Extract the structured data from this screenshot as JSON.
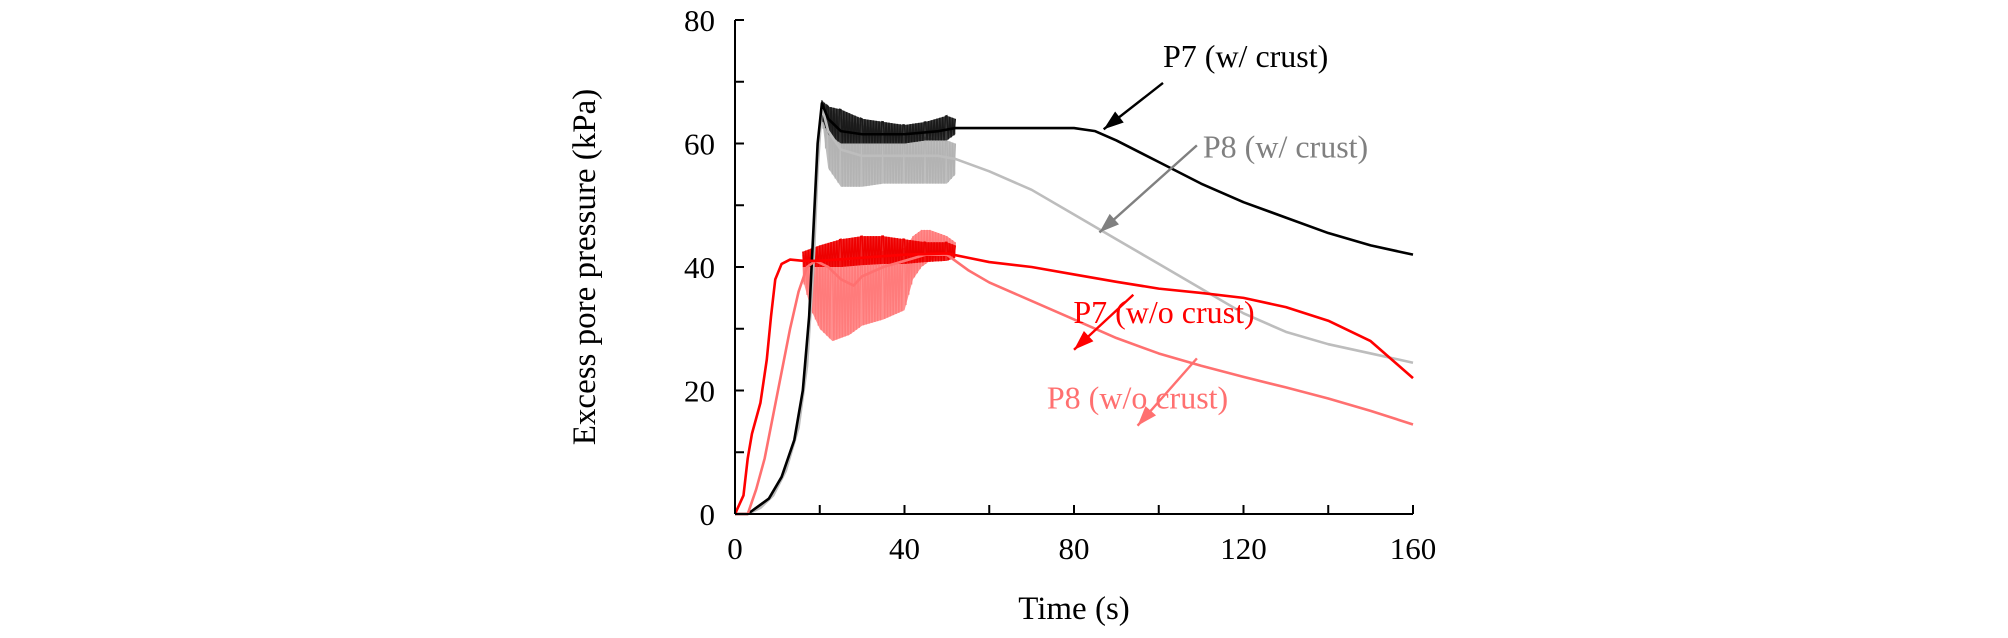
{
  "chart_data": {
    "type": "line",
    "xlabel": "Time (s)",
    "ylabel": "Excess pore pressure (kPa)",
    "xlim": [
      0,
      160
    ],
    "ylim": [
      0,
      80
    ],
    "xticks": [
      0,
      40,
      80,
      120,
      160
    ],
    "yticks": [
      0,
      20,
      40,
      60,
      80
    ],
    "grid": false,
    "legend": "none",
    "series": [
      {
        "name": "P8 (w/ crust)",
        "color": "#bdbdbd",
        "band_color": "#b3b3b3",
        "points": [
          [
            0,
            0
          ],
          [
            3,
            0
          ],
          [
            6,
            1
          ],
          [
            9,
            3
          ],
          [
            12,
            7
          ],
          [
            15,
            14
          ],
          [
            17,
            24
          ],
          [
            18.5,
            40
          ],
          [
            19.5,
            56
          ],
          [
            20.5,
            66
          ],
          [
            22,
            62
          ],
          [
            25,
            59
          ],
          [
            30,
            58
          ],
          [
            40,
            58
          ],
          [
            48,
            58
          ],
          [
            52,
            57.5
          ],
          [
            60,
            55.5
          ],
          [
            70,
            52.5
          ],
          [
            80,
            48.5
          ],
          [
            90,
            44.5
          ],
          [
            100,
            40.5
          ],
          [
            110,
            36.5
          ],
          [
            120,
            32.5
          ],
          [
            130,
            29.5
          ],
          [
            140,
            27.5
          ],
          [
            150,
            26
          ],
          [
            160,
            24.5
          ]
        ],
        "band": [
          [
            20.5,
            66,
            64
          ],
          [
            22,
            66,
            56
          ],
          [
            25,
            64,
            53
          ],
          [
            30,
            63,
            53
          ],
          [
            35,
            62,
            53.5
          ],
          [
            40,
            61,
            53.5
          ],
          [
            45,
            61,
            53.5
          ],
          [
            50,
            60.5,
            53.5
          ],
          [
            52,
            60,
            55
          ]
        ]
      },
      {
        "name": "P7 (w/ crust)",
        "color": "#000000",
        "band_color": "#1a1a1a",
        "points": [
          [
            0,
            0
          ],
          [
            3,
            0
          ],
          [
            5,
            1
          ],
          [
            8,
            2.5
          ],
          [
            11,
            6
          ],
          [
            14,
            12
          ],
          [
            16,
            20
          ],
          [
            17.5,
            32
          ],
          [
            18.5,
            46
          ],
          [
            19.5,
            60
          ],
          [
            20.5,
            66.5
          ],
          [
            22,
            64
          ],
          [
            25,
            62
          ],
          [
            30,
            61.5
          ],
          [
            40,
            61.5
          ],
          [
            48,
            62
          ],
          [
            52,
            62.5
          ],
          [
            60,
            62.5
          ],
          [
            70,
            62.5
          ],
          [
            80,
            62.5
          ],
          [
            85,
            62
          ],
          [
            90,
            60.5
          ],
          [
            100,
            57
          ],
          [
            110,
            53.5
          ],
          [
            120,
            50.5
          ],
          [
            130,
            48
          ],
          [
            140,
            45.5
          ],
          [
            150,
            43.5
          ],
          [
            160,
            42
          ]
        ],
        "band": [
          [
            20.5,
            67,
            64
          ],
          [
            22,
            66,
            61.5
          ],
          [
            25,
            65.5,
            60
          ],
          [
            30,
            64,
            60
          ],
          [
            35,
            63.5,
            60
          ],
          [
            40,
            63,
            60
          ],
          [
            45,
            63.5,
            60.5
          ],
          [
            50,
            64.5,
            60.5
          ],
          [
            52,
            64,
            61.5
          ]
        ]
      },
      {
        "name": "P8 (w/o crust)",
        "color": "#ff7070",
        "band_color": "#ff7b7b",
        "points": [
          [
            0,
            0
          ],
          [
            3,
            0
          ],
          [
            5,
            4
          ],
          [
            7,
            9
          ],
          [
            9,
            16
          ],
          [
            11,
            23
          ],
          [
            13,
            30
          ],
          [
            15,
            36
          ],
          [
            17,
            40
          ],
          [
            19,
            41
          ],
          [
            22,
            40
          ],
          [
            25,
            38
          ],
          [
            28,
            37
          ],
          [
            30,
            38.5
          ],
          [
            35,
            40
          ],
          [
            40,
            41
          ],
          [
            45,
            42
          ],
          [
            50,
            42
          ],
          [
            55,
            39.5
          ],
          [
            60,
            37.5
          ],
          [
            70,
            34.5
          ],
          [
            80,
            31.5
          ],
          [
            90,
            28.5
          ],
          [
            100,
            26
          ],
          [
            110,
            24
          ],
          [
            120,
            22.2
          ],
          [
            130,
            20.5
          ],
          [
            140,
            18.7
          ],
          [
            150,
            16.7
          ],
          [
            160,
            14.5
          ]
        ],
        "band": [
          [
            16,
            42,
            38
          ],
          [
            18,
            41.5,
            33
          ],
          [
            20,
            42,
            30
          ],
          [
            23,
            41.5,
            28
          ],
          [
            27,
            41,
            29
          ],
          [
            30,
            41.5,
            30.5
          ],
          [
            35,
            42.5,
            31.5
          ],
          [
            40,
            43,
            33
          ],
          [
            42,
            45,
            38
          ],
          [
            44,
            46,
            40
          ],
          [
            46,
            46,
            41
          ],
          [
            48,
            45.5,
            42
          ],
          [
            50,
            45,
            42
          ],
          [
            52,
            44,
            42
          ]
        ]
      },
      {
        "name": "P7 (w/o crust)",
        "color": "#ff0000",
        "band_color": "#ee0000",
        "points": [
          [
            0,
            0
          ],
          [
            2,
            3
          ],
          [
            3,
            9
          ],
          [
            4,
            13
          ],
          [
            6,
            18
          ],
          [
            7.5,
            25
          ],
          [
            8.5,
            32
          ],
          [
            9.5,
            38
          ],
          [
            11,
            40.5
          ],
          [
            13,
            41.2
          ],
          [
            16,
            41
          ],
          [
            20,
            41
          ],
          [
            30,
            41.5
          ],
          [
            40,
            42
          ],
          [
            50,
            42.2
          ],
          [
            55,
            41.5
          ],
          [
            60,
            40.8
          ],
          [
            70,
            40
          ],
          [
            80,
            38.8
          ],
          [
            90,
            37.6
          ],
          [
            100,
            36.5
          ],
          [
            110,
            35.8
          ],
          [
            120,
            35
          ],
          [
            130,
            33.5
          ],
          [
            140,
            31.3
          ],
          [
            150,
            28
          ],
          [
            155,
            25
          ],
          [
            160,
            22
          ]
        ],
        "band": [
          [
            16,
            42.5,
            40
          ],
          [
            20,
            43.5,
            40
          ],
          [
            25,
            44.5,
            40
          ],
          [
            30,
            45,
            40.3
          ],
          [
            35,
            45,
            40.5
          ],
          [
            40,
            44.5,
            40.5
          ],
          [
            45,
            44,
            40.8
          ],
          [
            50,
            44,
            41
          ],
          [
            52,
            43.5,
            41.5
          ]
        ]
      }
    ],
    "annotations": [
      {
        "text": "P7 (w/ crust)",
        "color": "#000000",
        "arrow_from": [
          101,
          69.8
        ],
        "arrow_to": [
          87,
          62.3
        ]
      },
      {
        "text": "P8 (w/ crust)",
        "color": "#808080",
        "arrow_from": [
          109,
          59.7
        ],
        "arrow_to": [
          86,
          45.6
        ]
      },
      {
        "text": "P7 (w/o crust)",
        "color": "#ff0000",
        "arrow_from": [
          94,
          35.5
        ],
        "arrow_to": [
          80,
          26.6
        ]
      },
      {
        "text": "P8 (w/o crust)",
        "color": "#ff7070",
        "arrow_from": [
          109,
          25.2
        ],
        "arrow_to": [
          95,
          14.3
        ]
      }
    ]
  }
}
